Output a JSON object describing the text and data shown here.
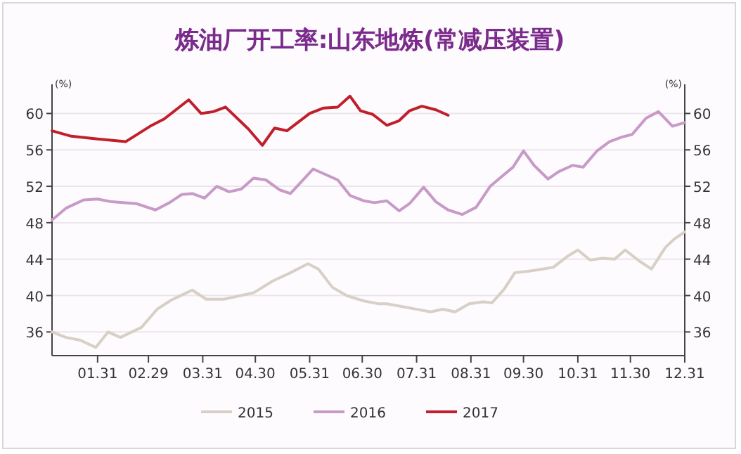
{
  "chart_data": {
    "type": "line",
    "title": "炼油厂开工率:山东地炼(常减压装置)",
    "ylabel": "(%)",
    "y2label": "(%)",
    "xlim": [
      "--01-05",
      "--12-31"
    ],
    "xticks": [
      {
        "value": "--01-31",
        "label": "01.31"
      },
      {
        "value": "--02-29",
        "label": "02.29"
      },
      {
        "value": "--03-31",
        "label": "03.31"
      },
      {
        "value": "--04-30",
        "label": "04.30"
      },
      {
        "value": "--05-31",
        "label": "05.31"
      },
      {
        "value": "--06-30",
        "label": "06.30"
      },
      {
        "value": "--07-31",
        "label": "07.31"
      },
      {
        "value": "--08-31",
        "label": "08.31"
      },
      {
        "value": "--09-30",
        "label": "09.30"
      },
      {
        "value": "--10-31",
        "label": "10.31"
      },
      {
        "value": "--11-30",
        "label": "11.30"
      },
      {
        "value": "--12-31",
        "label": "12.31"
      }
    ],
    "ylim": [
      33.4,
      63.2
    ],
    "yticks": [
      36,
      40,
      44,
      48,
      52,
      56,
      60
    ],
    "y2lim": [
      33.4,
      63.2
    ],
    "y2ticks": [
      36,
      40,
      44,
      48,
      52,
      56,
      60
    ],
    "grid": "y",
    "legend": "bottom",
    "marker": "none",
    "line_style": "solid",
    "series": [
      {
        "name": "2015",
        "color": "#d8cfc6",
        "x": [
          "--01-05",
          "--01-13",
          "--01-21",
          "--01-30",
          "--02-06",
          "--02-13",
          "--02-25",
          "--03-05",
          "--03-13",
          "--03-25",
          "--04-02",
          "--04-12",
          "--04-29",
          "--05-10",
          "--05-20",
          "--05-30",
          "--06-05",
          "--06-13",
          "--06-21",
          "--07-01",
          "--07-09",
          "--07-14",
          "--07-28",
          "--08-08",
          "--08-15",
          "--08-22",
          "--08-30",
          "--09-07",
          "--09-12",
          "--09-19",
          "--09-25",
          "--10-04",
          "--10-17",
          "--10-25",
          "--10-31",
          "--11-07",
          "--11-14",
          "--11-21",
          "--11-27",
          "--12-05",
          "--12-12",
          "--12-20",
          "--12-25",
          "--12-31"
        ],
        "values": [
          36.0,
          35.4,
          35.1,
          34.3,
          36.0,
          35.4,
          36.5,
          38.5,
          39.5,
          40.6,
          39.6,
          39.6,
          40.3,
          41.6,
          42.5,
          43.5,
          42.9,
          40.9,
          40.0,
          39.4,
          39.1,
          39.1,
          38.6,
          38.2,
          38.5,
          38.2,
          39.1,
          39.3,
          39.2,
          40.7,
          42.5,
          42.7,
          43.1,
          44.3,
          45.0,
          43.9,
          44.1,
          44.0,
          45.0,
          43.8,
          42.9,
          45.3,
          46.2,
          47.0
        ]
      },
      {
        "name": "2016",
        "color": "#c79ac8",
        "x": [
          "--01-05",
          "--01-13",
          "--01-23",
          "--01-31",
          "--02-08",
          "--02-22",
          "--03-04",
          "--03-12",
          "--03-19",
          "--03-25",
          "--04-01",
          "--04-08",
          "--04-15",
          "--04-22",
          "--04-29",
          "--05-06",
          "--05-14",
          "--05-20",
          "--06-02",
          "--06-09",
          "--06-16",
          "--06-23",
          "--07-01",
          "--07-07",
          "--07-14",
          "--07-21",
          "--07-27",
          "--08-04",
          "--08-11",
          "--08-18",
          "--08-26",
          "--09-03",
          "--09-11",
          "--09-19",
          "--09-24",
          "--09-30",
          "--10-06",
          "--10-14",
          "--10-20",
          "--10-28",
          "--11-03",
          "--11-11",
          "--11-18",
          "--11-25",
          "--12-01",
          "--12-09",
          "--12-16",
          "--12-24",
          "--12-31"
        ],
        "values": [
          48.3,
          49.6,
          50.5,
          50.6,
          50.3,
          50.1,
          49.4,
          50.2,
          51.1,
          51.2,
          50.7,
          52.0,
          51.4,
          51.7,
          52.9,
          52.7,
          51.6,
          51.2,
          53.9,
          53.3,
          52.7,
          51.0,
          50.4,
          50.2,
          50.4,
          49.3,
          50.1,
          51.9,
          50.3,
          49.4,
          48.9,
          49.7,
          52.0,
          53.3,
          54.1,
          55.9,
          54.3,
          52.8,
          53.6,
          54.3,
          54.1,
          55.9,
          56.9,
          57.4,
          57.7,
          59.5,
          60.2,
          58.6,
          59.0
        ]
      },
      {
        "name": "2017",
        "color": "#c01f2b",
        "x": [
          "--01-05",
          "--01-16",
          "--01-31",
          "--02-16",
          "--03-01",
          "--03-09",
          "--03-23",
          "--03-30",
          "--04-06",
          "--04-13",
          "--04-26",
          "--05-04",
          "--05-11",
          "--05-18",
          "--05-31",
          "--06-08",
          "--06-16",
          "--06-23",
          "--06-29",
          "--07-06",
          "--07-14",
          "--07-21",
          "--07-27",
          "--08-03",
          "--08-11",
          "--08-18"
        ],
        "values": [
          58.1,
          57.5,
          57.2,
          56.9,
          58.6,
          59.4,
          61.5,
          60.0,
          60.2,
          60.7,
          58.3,
          56.5,
          58.4,
          58.1,
          60.0,
          60.6,
          60.7,
          61.9,
          60.3,
          59.9,
          58.7,
          59.2,
          60.3,
          60.8,
          60.4,
          59.8
        ]
      }
    ]
  }
}
